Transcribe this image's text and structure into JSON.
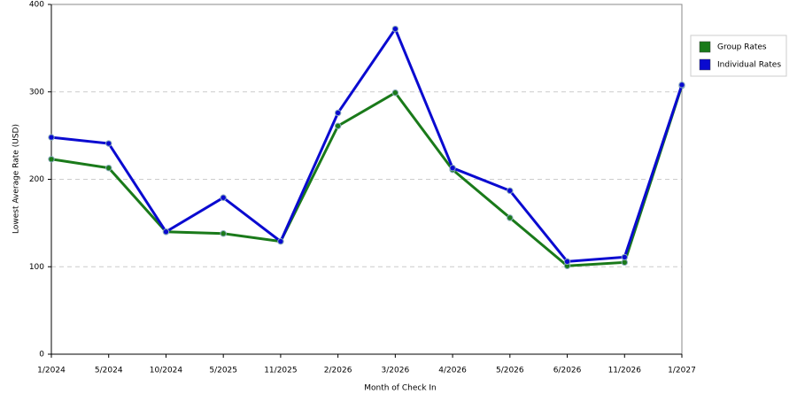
{
  "chart_data": {
    "type": "line",
    "x_label": "Month of Check In",
    "y_label": "Lowest Average Rate (USD)",
    "categories": [
      "1/2024",
      "5/2024",
      "10/2024",
      "5/2025",
      "11/2025",
      "2/2026",
      "3/2026",
      "4/2026",
      "5/2026",
      "6/2026",
      "11/2026",
      "1/2027"
    ],
    "series": [
      {
        "name": "Group Rates",
        "color": "#1a7a1a",
        "values": [
          223,
          213,
          140,
          138,
          129,
          261,
          299,
          211,
          156,
          101,
          105,
          307
        ]
      },
      {
        "name": "Individual Rates",
        "color": "#0a0ad0",
        "values": [
          248,
          241,
          140,
          179,
          129,
          276,
          372,
          213,
          187,
          106,
          111,
          308
        ]
      }
    ],
    "ylim": [
      0,
      400
    ],
    "yticks": [
      0,
      100,
      200,
      300,
      400
    ],
    "grid": true,
    "legend": "right"
  }
}
